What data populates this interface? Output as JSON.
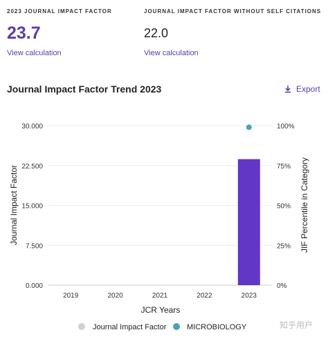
{
  "metrics": {
    "jif": {
      "label": "2023 JOURNAL IMPACT FACTOR",
      "value": "23.7",
      "link": "View calculation"
    },
    "jif_without_self": {
      "label": "JOURNAL IMPACT FACTOR WITHOUT SELF CITATIONS",
      "value": "22.0",
      "link": "View calculation"
    }
  },
  "trend": {
    "title": "Journal Impact Factor Trend 2023",
    "export_label": "Export"
  },
  "colors": {
    "accent": "#5b3ea8",
    "bar": "#6236c7",
    "percentile_dot": "#4aa3b8",
    "legend_jif_dot": "#d0d0d0"
  },
  "chart_data": {
    "type": "bar",
    "categories": [
      "2019",
      "2020",
      "2021",
      "2022",
      "2023"
    ],
    "series": [
      {
        "name": "Journal Impact Factor",
        "type": "bar",
        "axis": "left",
        "values": [
          null,
          null,
          null,
          null,
          23.7
        ]
      },
      {
        "name": "MICROBIOLOGY",
        "type": "scatter",
        "axis": "right",
        "values": [
          null,
          null,
          null,
          null,
          99
        ]
      }
    ],
    "xlabel": "JCR Years",
    "ylabel": "Journal Impact Factor",
    "y2label": "JIF Percentile in Category",
    "ylim": [
      0,
      30
    ],
    "yticks": [
      "0.000",
      "7.500",
      "15.000",
      "22.500",
      "30.000"
    ],
    "y2lim": [
      0,
      100
    ],
    "y2ticks": [
      "0%",
      "25%",
      "50%",
      "75%",
      "100%"
    ],
    "grid": true,
    "legend_position": "bottom"
  },
  "watermark": "知乎用户"
}
